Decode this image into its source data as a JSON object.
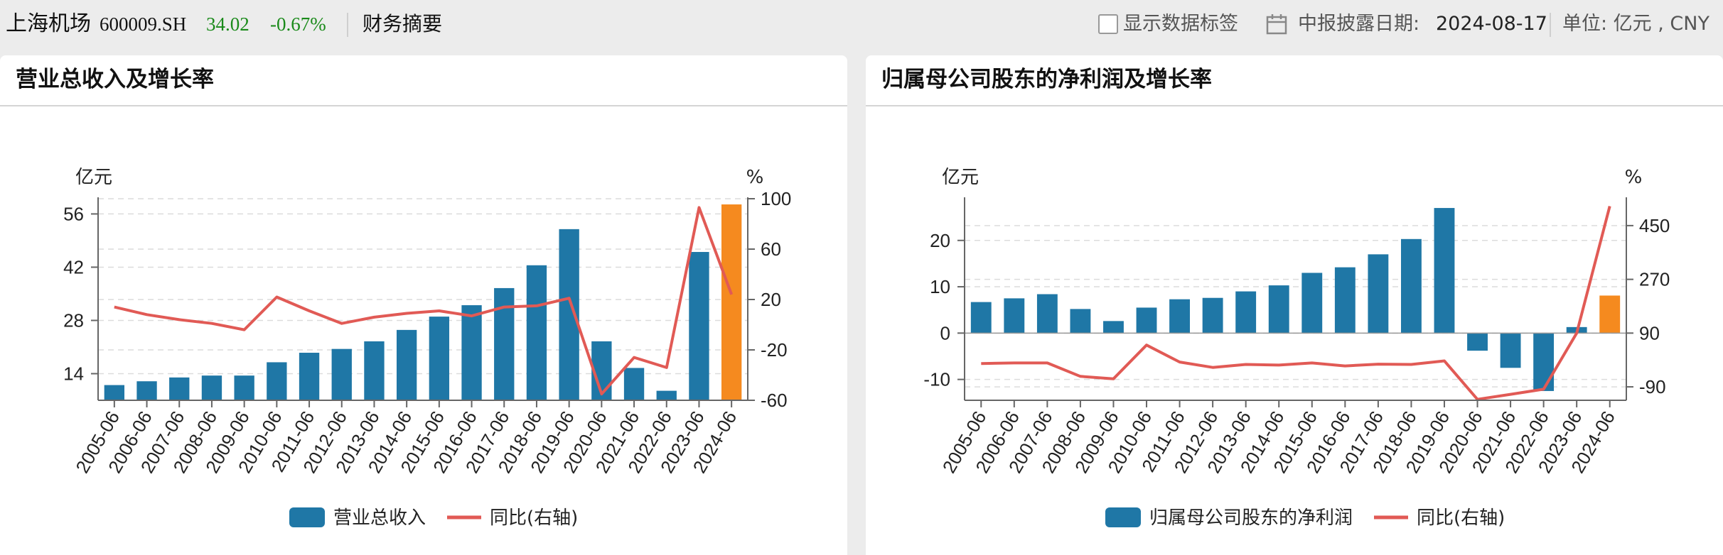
{
  "header": {
    "stock_name": "上海机场",
    "stock_code": "600009.SH",
    "price": "34.02",
    "change": "-0.67%",
    "tab": "财务摘要",
    "show_labels": "显示数据标签",
    "report_date_label": "中报披露日期:",
    "report_date": "2024-08-17",
    "unit": "单位: 亿元 , CNY"
  },
  "colors": {
    "bar": "#1f77a6",
    "bar_highlight": "#f58a1f",
    "line": "#e15a55",
    "price_down": "#1a8a1a"
  },
  "chart_data": [
    {
      "type": "bar",
      "title": "营业总收入及增长率",
      "ylabel": "亿元",
      "y2label": "%",
      "categories": [
        "2005-06",
        "2006-06",
        "2007-06",
        "2008-06",
        "2009-06",
        "2010-06",
        "2011-06",
        "2012-06",
        "2013-06",
        "2014-06",
        "2015-06",
        "2016-06",
        "2017-06",
        "2018-06",
        "2019-06",
        "2020-06",
        "2021-06",
        "2022-06",
        "2023-06",
        "2024-06"
      ],
      "ylim": [
        7,
        60
      ],
      "yticks": [
        14,
        28,
        42,
        56
      ],
      "y2lim": [
        -60,
        100
      ],
      "y2ticks": [
        -60,
        -20,
        20,
        60,
        100
      ],
      "grid": true,
      "legend_position": "bottom",
      "series": [
        {
          "name": "营业总收入",
          "type": "bar",
          "axis": "left",
          "values": [
            11,
            12,
            13,
            13.5,
            13.5,
            17,
            19.5,
            20.5,
            22.5,
            25.5,
            29,
            32,
            36.5,
            42.5,
            52,
            22.5,
            15.5,
            9.5,
            46,
            58.5
          ],
          "highlight_last": true
        },
        {
          "name": "同比(右轴)",
          "type": "line",
          "axis": "right",
          "values": [
            14,
            8,
            4,
            1,
            -4,
            22,
            11,
            1,
            6,
            9,
            11,
            7,
            14,
            15,
            21,
            -55,
            -26,
            -34,
            93,
            24
          ]
        }
      ]
    },
    {
      "type": "bar",
      "title": "归属母公司股东的净利润及增长率",
      "ylabel": "亿元",
      "y2label": "%",
      "categories": [
        "2005-06",
        "2006-06",
        "2007-06",
        "2008-06",
        "2009-06",
        "2010-06",
        "2011-06",
        "2012-06",
        "2013-06",
        "2014-06",
        "2015-06",
        "2016-06",
        "2017-06",
        "2018-06",
        "2019-06",
        "2020-06",
        "2021-06",
        "2022-06",
        "2023-06",
        "2024-06"
      ],
      "ylim": [
        -14.5,
        29
      ],
      "yticks": [
        -10,
        0,
        10,
        20
      ],
      "y2lim": [
        -135,
        540
      ],
      "y2ticks": [
        -90,
        90,
        270,
        450
      ],
      "grid": true,
      "legend_position": "bottom",
      "series": [
        {
          "name": "归属母公司股东的净利润",
          "type": "bar",
          "axis": "left",
          "values": [
            6.7,
            7.5,
            8.4,
            5.2,
            2.6,
            5.5,
            7.3,
            7.6,
            9,
            10.3,
            13,
            14.2,
            17,
            20.3,
            27,
            -3.8,
            -7.5,
            -12.5,
            1.3,
            8.1
          ],
          "highlight_last": true
        },
        {
          "name": "同比(右轴)",
          "type": "line",
          "axis": "right",
          "values": [
            -12,
            -10,
            -10,
            -55,
            -63,
            50,
            -7,
            -25,
            -15,
            -17,
            -10,
            -20,
            -14,
            -15,
            -3,
            -132,
            -115,
            -98,
            90,
            515
          ]
        }
      ]
    }
  ]
}
